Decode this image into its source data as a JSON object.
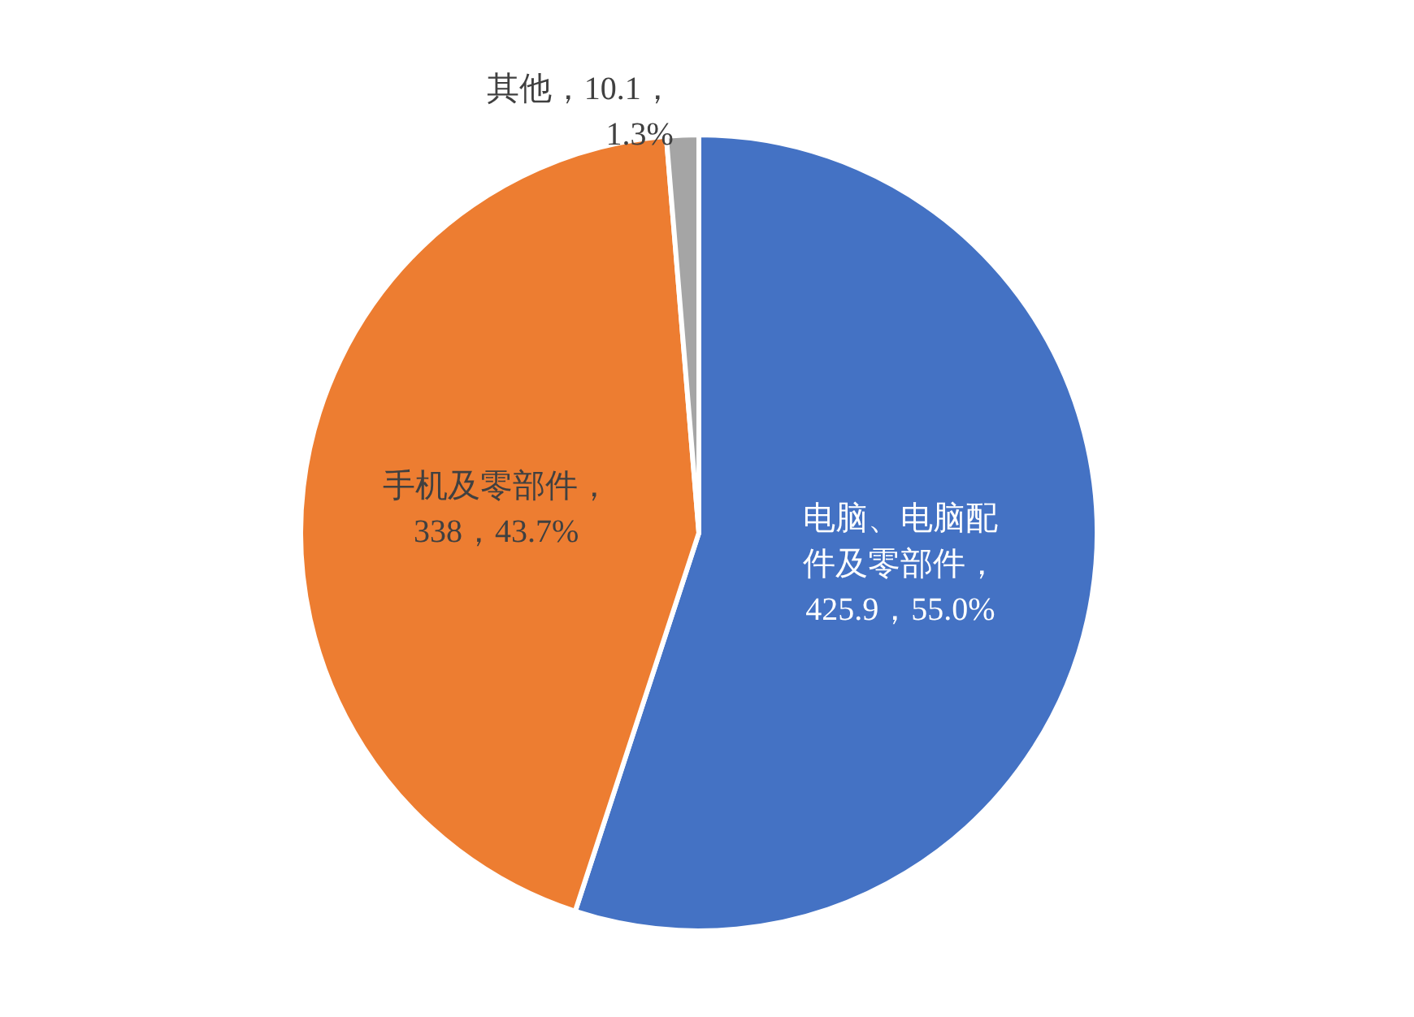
{
  "chart_data": {
    "type": "pie",
    "categories": [
      "电脑、电脑配件及零部件",
      "手机及零部件",
      "其他"
    ],
    "values": [
      425.9,
      338,
      10.1
    ],
    "value_labels": [
      "，425.9，55.0%",
      "，338，43.7%",
      "，10.1，1.3%"
    ],
    "colors": [
      "#4472c4",
      "#ed7d31",
      "#a5a5a5"
    ]
  }
}
